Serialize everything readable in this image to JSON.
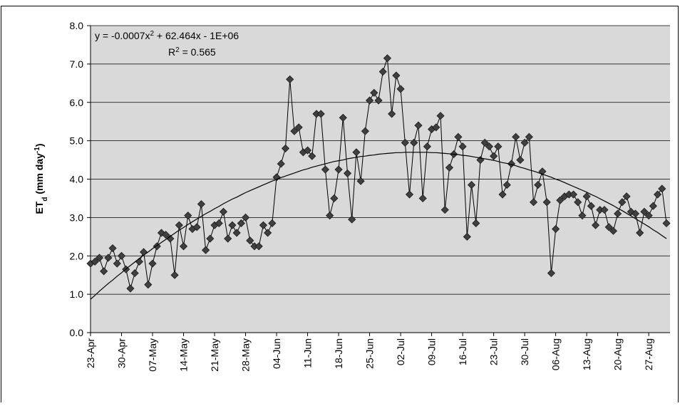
{
  "chart_data": {
    "type": "line",
    "y_label": [
      "ET",
      "d",
      " (mm day",
      "-1",
      ")"
    ],
    "equation": [
      "y = -0.0007x",
      "2",
      " + 62.464x - 1E+06"
    ],
    "r_squared": [
      "R",
      "2",
      " = 0.565"
    ],
    "ylim": [
      0,
      8
    ],
    "yticks": [
      {
        "value": 0,
        "label": "0.0"
      },
      {
        "value": 1,
        "label": "1.0"
      },
      {
        "value": 2,
        "label": "2.0"
      },
      {
        "value": 3,
        "label": "3.0"
      },
      {
        "value": 4,
        "label": "4.0"
      },
      {
        "value": 5,
        "label": "5.0"
      },
      {
        "value": 6,
        "label": "6.0"
      },
      {
        "value": 7,
        "label": "7.0"
      },
      {
        "value": 8,
        "label": "8.0"
      }
    ],
    "grid": true,
    "categories": [
      "23-Apr",
      null,
      null,
      null,
      null,
      null,
      null,
      "30-Apr",
      null,
      null,
      null,
      null,
      null,
      null,
      "07-May",
      null,
      null,
      null,
      null,
      null,
      null,
      "14-May",
      null,
      null,
      null,
      null,
      null,
      null,
      "21-May",
      null,
      null,
      null,
      null,
      null,
      null,
      "28-May",
      null,
      null,
      null,
      null,
      null,
      null,
      "04-Jun",
      null,
      null,
      null,
      null,
      null,
      null,
      "11-Jun",
      null,
      null,
      null,
      null,
      null,
      null,
      "18-Jun",
      null,
      null,
      null,
      null,
      null,
      null,
      "25-Jun",
      null,
      null,
      null,
      null,
      null,
      null,
      "02-Jul",
      null,
      null,
      null,
      null,
      null,
      null,
      "09-Jul",
      null,
      null,
      null,
      null,
      null,
      null,
      "16-Jul",
      null,
      null,
      null,
      null,
      null,
      null,
      "23-Jul",
      null,
      null,
      null,
      null,
      null,
      null,
      "30-Jul",
      null,
      null,
      null,
      null,
      null,
      null,
      "06-Aug",
      null,
      null,
      null,
      null,
      null,
      null,
      "13-Aug",
      null,
      null,
      null,
      null,
      null,
      null,
      "20-Aug",
      null,
      null,
      null,
      null,
      null,
      null,
      "27-Aug",
      null,
      null,
      null,
      null
    ],
    "series": [
      {
        "color": "#404040",
        "marker": "diamond",
        "values": [
          1.8,
          1.85,
          1.95,
          1.6,
          1.95,
          2.2,
          1.8,
          2.0,
          1.65,
          1.15,
          1.55,
          1.85,
          2.1,
          1.25,
          1.8,
          2.25,
          2.6,
          2.55,
          2.45,
          1.5,
          2.8,
          2.25,
          3.05,
          2.7,
          2.75,
          3.35,
          2.15,
          2.45,
          2.8,
          2.85,
          3.15,
          2.45,
          2.8,
          2.6,
          2.85,
          3.0,
          2.4,
          2.25,
          2.25,
          2.8,
          2.6,
          2.85,
          4.05,
          4.4,
          4.8,
          6.6,
          5.25,
          5.35,
          4.7,
          4.75,
          4.6,
          5.7,
          5.7,
          4.25,
          3.05,
          3.5,
          4.25,
          5.6,
          4.15,
          2.95,
          4.7,
          3.95,
          5.25,
          6.05,
          6.25,
          6.05,
          6.8,
          7.15,
          5.7,
          6.7,
          6.35,
          4.95,
          3.6,
          4.95,
          5.4,
          3.5,
          4.85,
          5.3,
          5.35,
          5.65,
          3.2,
          4.3,
          4.65,
          5.1,
          4.85,
          2.5,
          3.85,
          2.85,
          4.5,
          4.95,
          4.85,
          4.6,
          4.85,
          3.6,
          3.85,
          4.4,
          5.1,
          4.5,
          4.95,
          5.1,
          3.4,
          3.85,
          4.2,
          3.4,
          1.55,
          2.7,
          3.45,
          3.55,
          3.6,
          3.6,
          3.4,
          3.05,
          3.55,
          3.3,
          2.8,
          3.2,
          3.2,
          2.75,
          2.65,
          3.1,
          3.4,
          3.55,
          3.15,
          3.1,
          2.6,
          3.15,
          3.05,
          3.3,
          3.6,
          3.75,
          2.85
        ]
      },
      {
        "color": "#000000",
        "marker": "none",
        "values": [
          0.87,
          0.97,
          1.08,
          1.18,
          1.28,
          1.37,
          1.47,
          1.56,
          1.66,
          1.75,
          1.84,
          1.93,
          2.02,
          2.1,
          2.19,
          2.27,
          2.35,
          2.43,
          2.51,
          2.59,
          2.67,
          2.74,
          2.82,
          2.89,
          2.96,
          3.03,
          3.1,
          3.16,
          3.23,
          3.29,
          3.36,
          3.42,
          3.48,
          3.53,
          3.59,
          3.65,
          3.7,
          3.75,
          3.8,
          3.85,
          3.9,
          3.95,
          3.99,
          4.04,
          4.08,
          4.12,
          4.16,
          4.2,
          4.24,
          4.27,
          4.31,
          4.34,
          4.37,
          4.4,
          4.43,
          4.46,
          4.48,
          4.5,
          4.53,
          4.55,
          4.57,
          4.59,
          4.6,
          4.62,
          4.63,
          4.65,
          4.66,
          4.67,
          4.68,
          4.69,
          4.69,
          4.7,
          4.7,
          4.7,
          4.7,
          4.7,
          4.7,
          4.69,
          4.69,
          4.68,
          4.67,
          4.66,
          4.65,
          4.64,
          4.62,
          4.61,
          4.59,
          4.57,
          4.55,
          4.53,
          4.51,
          4.49,
          4.46,
          4.43,
          4.41,
          4.38,
          4.35,
          4.31,
          4.28,
          4.24,
          4.21,
          4.17,
          4.13,
          4.09,
          4.05,
          4.0,
          3.96,
          3.91,
          3.86,
          3.81,
          3.76,
          3.71,
          3.66,
          3.6,
          3.55,
          3.49,
          3.43,
          3.37,
          3.31,
          3.24,
          3.18,
          3.11,
          3.04,
          2.97,
          2.9,
          2.83,
          2.76,
          2.68,
          2.61,
          2.53,
          2.45
        ]
      }
    ]
  }
}
